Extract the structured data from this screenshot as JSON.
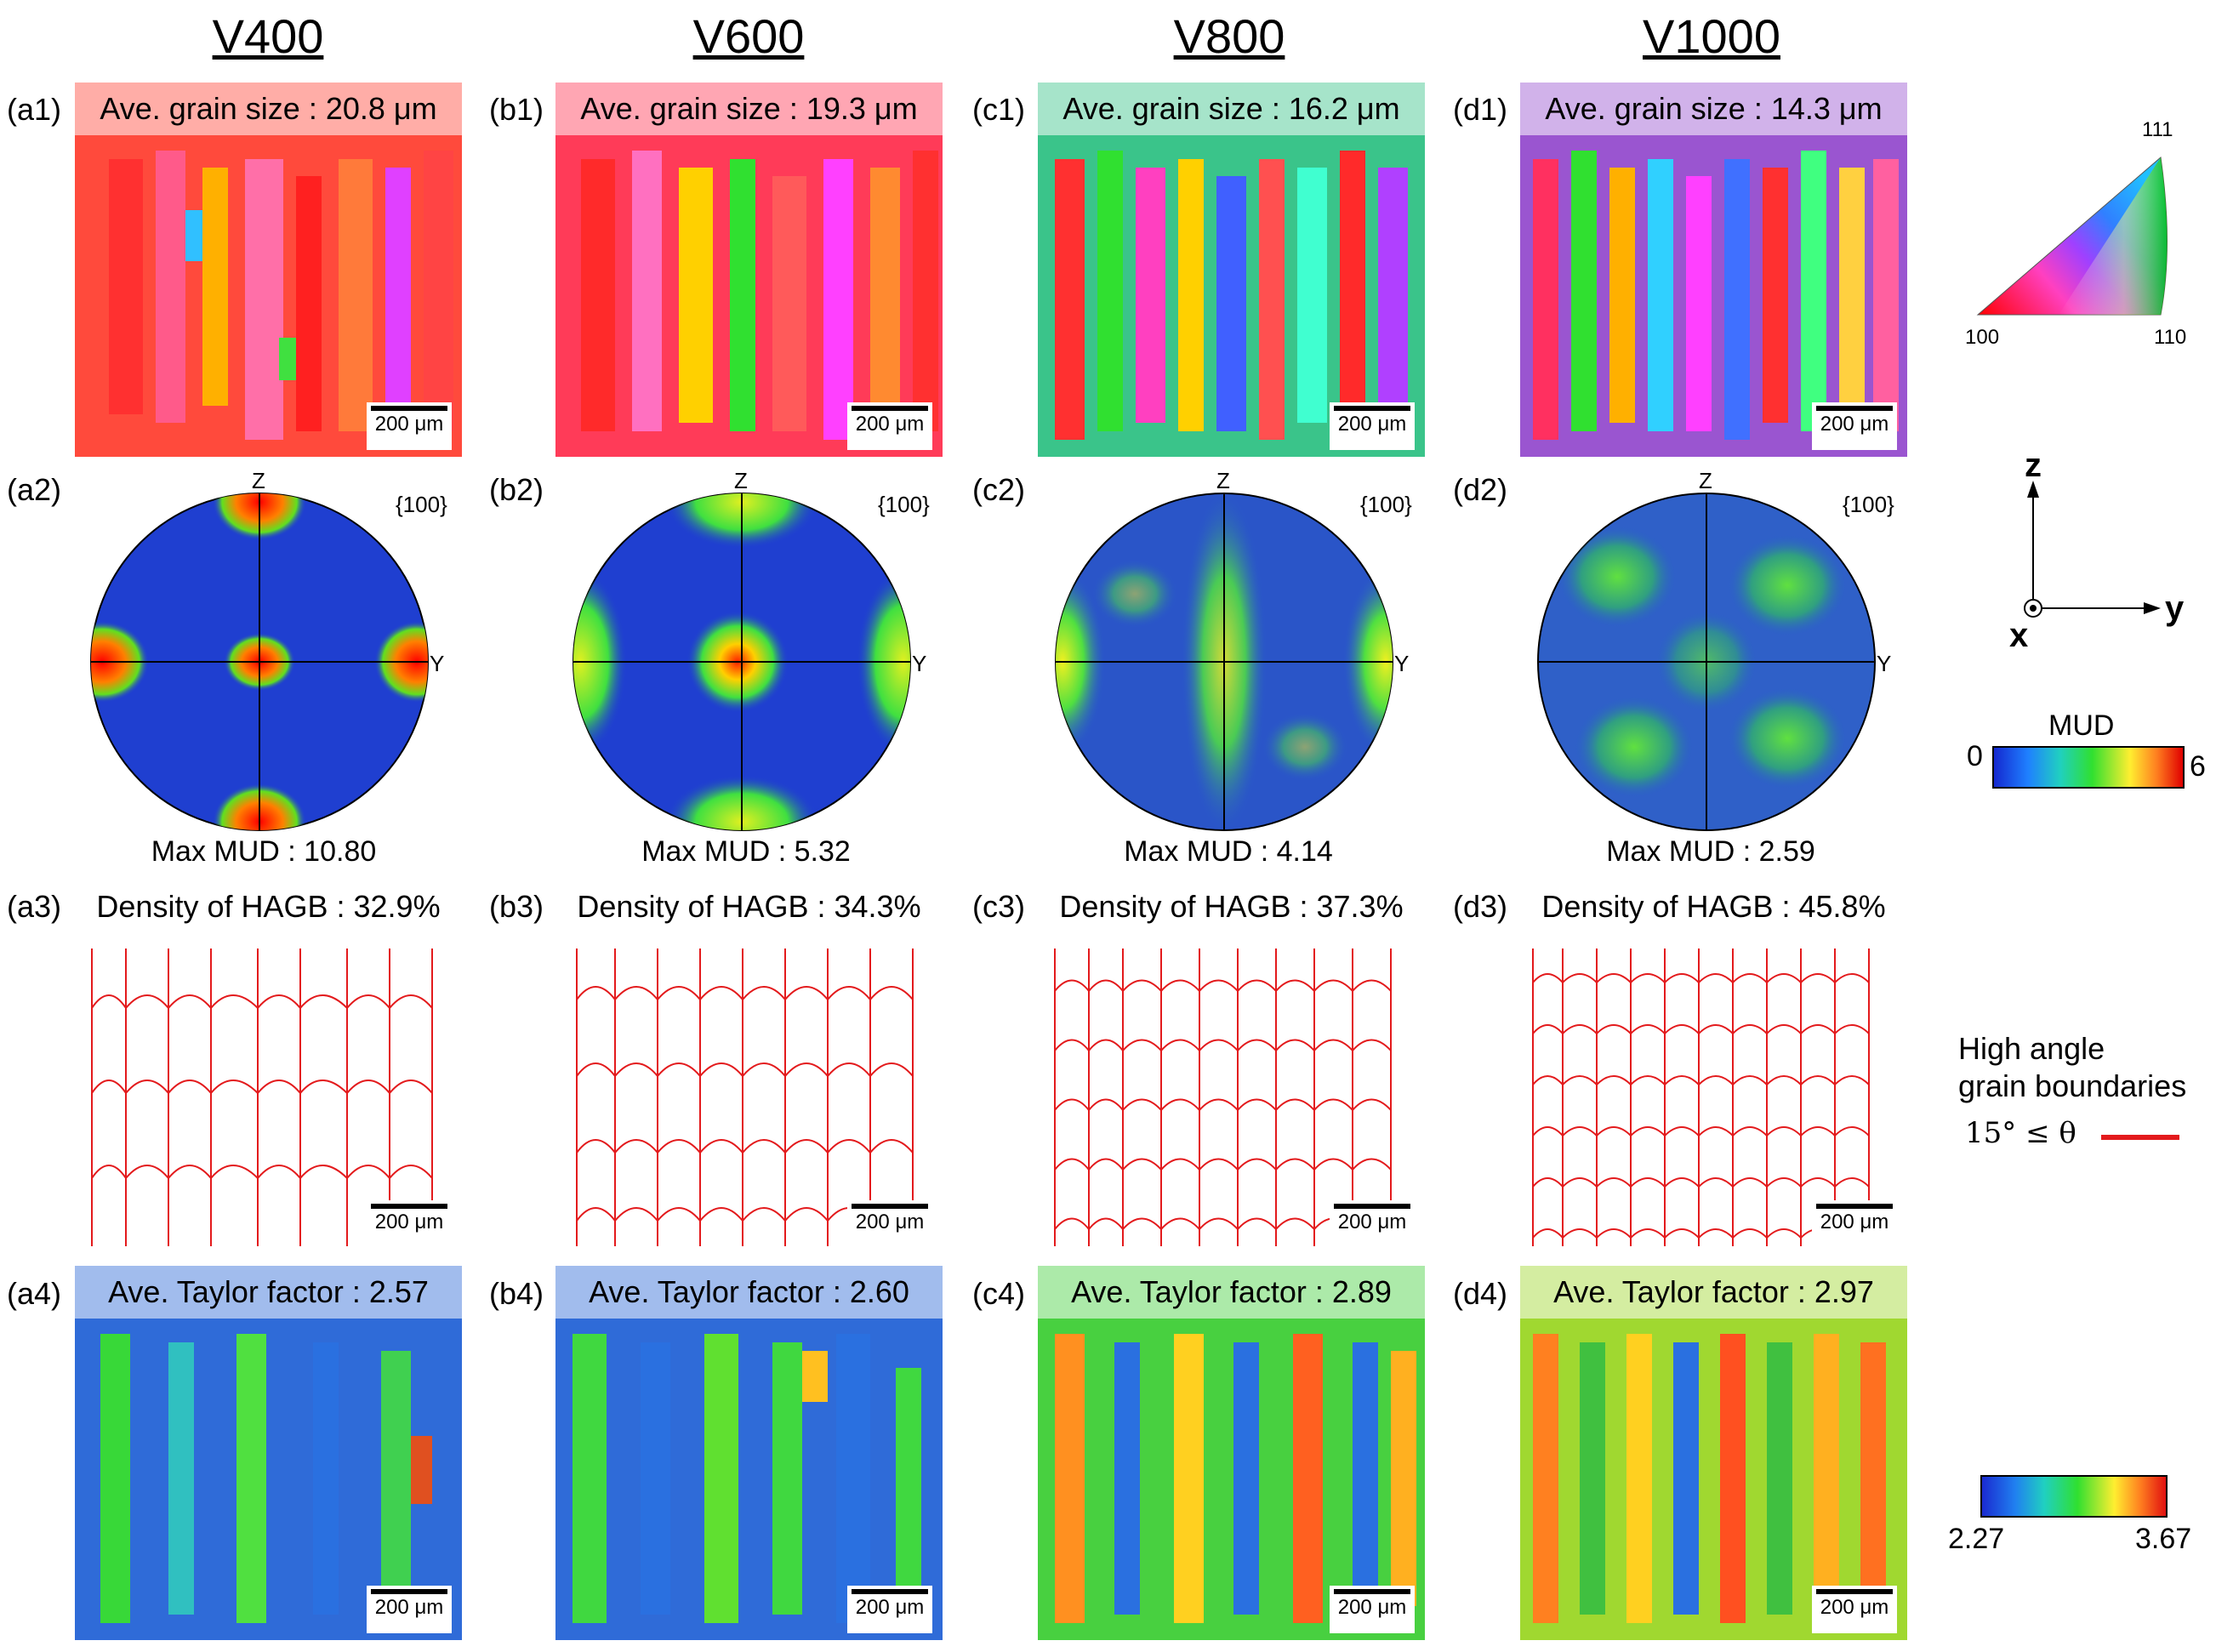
{
  "columns": [
    {
      "title": "V400",
      "labels": [
        "(a1)",
        "(a2)",
        "(a3)",
        "(a4)"
      ],
      "grain_size": "Ave. grain size : 20.8 μm",
      "pole_axis_z": "Z",
      "pole_axis_y": "Y",
      "pole_family": "{100}",
      "max_mud": "Max MUD : 10.80",
      "hagb": "Density of HAGB : 32.9%",
      "taylor": "Ave. Taylor factor : 2.57",
      "scale": "200 μm"
    },
    {
      "title": "V600",
      "labels": [
        "(b1)",
        "(b2)",
        "(b3)",
        "(b4)"
      ],
      "grain_size": "Ave. grain size : 19.3 μm",
      "pole_axis_z": "Z",
      "pole_axis_y": "Y",
      "pole_family": "{100}",
      "max_mud": "Max MUD : 5.32",
      "hagb": "Density of HAGB : 34.3%",
      "taylor": "Ave. Taylor factor : 2.60",
      "scale": "200 μm"
    },
    {
      "title": "V800",
      "labels": [
        "(c1)",
        "(c2)",
        "(c3)",
        "(c4)"
      ],
      "grain_size": "Ave. grain size : 16.2 μm",
      "pole_axis_z": "Z",
      "pole_axis_y": "Y",
      "pole_family": "{100}",
      "max_mud": "Max MUD : 4.14",
      "hagb": "Density of HAGB : 37.3%",
      "taylor": "Ave. Taylor factor : 2.89",
      "scale": "200 μm"
    },
    {
      "title": "V1000",
      "labels": [
        "(d1)",
        "(d2)",
        "(d3)",
        "(d4)"
      ],
      "grain_size": "Ave. grain size : 14.3 μm",
      "pole_axis_z": "Z",
      "pole_axis_y": "Y",
      "pole_family": "{100}",
      "max_mud": "Max MUD : 2.59",
      "hagb": "Density of HAGB : 45.8%",
      "taylor": "Ave. Taylor factor : 2.97",
      "scale": "200 μm"
    }
  ],
  "legends": {
    "ipf": {
      "corner_111": "111",
      "corner_100": "100",
      "corner_110": "110"
    },
    "axes": {
      "z": "z",
      "y": "y",
      "x": "x"
    },
    "mud": {
      "title": "MUD",
      "min": "0",
      "max": "6"
    },
    "hagb": {
      "line1": "High angle",
      "line2": "grain boundaries",
      "criterion": "15° ≤ θ"
    },
    "taylor": {
      "min": "2.27",
      "max": "3.67"
    }
  },
  "colors": {
    "pf_blue": "#1f3fd0",
    "hagb_red": "#e31a1c"
  }
}
